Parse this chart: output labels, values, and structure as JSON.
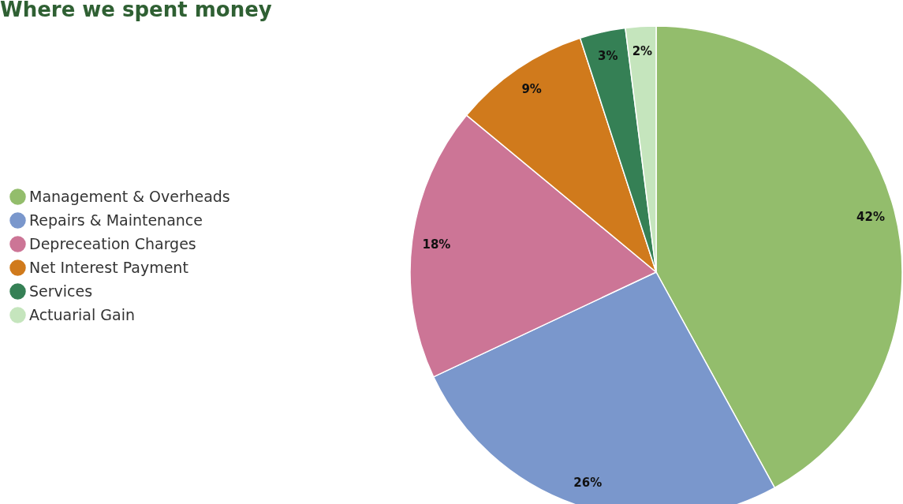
{
  "chart_data": {
    "type": "pie",
    "title": "Where we spent money",
    "categories": [
      "Management & Overheads",
      "Repairs & Maintenance",
      "Depreceation Charges",
      "Net Interest Payment",
      "Services",
      "Actuarial Gain"
    ],
    "values": [
      42,
      26,
      18,
      9,
      3,
      2
    ],
    "colors": [
      "#93bd6c",
      "#7a97cc",
      "#cc7596",
      "#d07a1c",
      "#358055",
      "#c5e5bd"
    ],
    "value_labels": [
      "42%",
      "26%",
      "18%",
      "9%",
      "3%",
      "2%"
    ],
    "legend": "left"
  }
}
